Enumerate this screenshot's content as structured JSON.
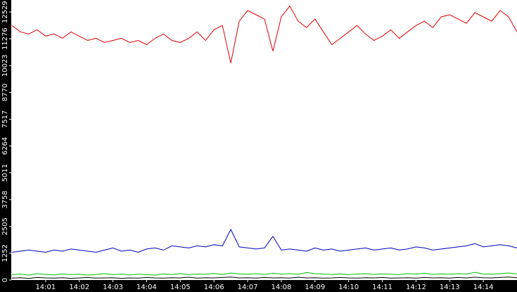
{
  "chart_data": {
    "type": "line",
    "x": [
      0,
      0.25,
      0.5,
      0.75,
      1,
      1.25,
      1.5,
      1.75,
      2,
      2.25,
      2.5,
      2.75,
      3,
      3.25,
      3.5,
      3.75,
      4,
      4.25,
      4.5,
      4.75,
      5,
      5.25,
      5.5,
      5.75,
      6,
      6.25,
      6.5,
      6.75,
      7,
      7.25,
      7.5,
      7.75,
      8,
      8.25,
      8.5,
      8.75,
      9,
      9.25,
      9.5,
      9.75,
      10,
      10.25,
      10.5,
      10.75,
      11,
      11.25,
      11.5,
      11.75,
      12,
      12.25,
      12.5,
      12.75,
      13,
      13.25,
      13.5,
      13.75,
      14,
      14.25,
      14.5,
      14.75,
      15
    ],
    "series": [
      {
        "color": "#e00000",
        "values": [
          11900,
          11600,
          11500,
          11700,
          11400,
          11500,
          11300,
          11600,
          11400,
          11200,
          11300,
          11100,
          11200,
          11300,
          11100,
          11200,
          11000,
          11300,
          11500,
          11200,
          11100,
          11300,
          11600,
          11200,
          11700,
          11900,
          10146,
          12100,
          12600,
          12400,
          12200,
          10697,
          12300,
          12800,
          12100,
          11800,
          12200,
          11600,
          11000,
          11300,
          11600,
          11900,
          11500,
          11200,
          11400,
          11700,
          11300,
          11600,
          11900,
          12100,
          11800,
          12300,
          12400,
          12200,
          12000,
          12500,
          12300,
          12100,
          12600,
          12300,
          11600
        ]
      },
      {
        "color": "#0000c0",
        "values": [
          1300,
          1350,
          1400,
          1350,
          1300,
          1400,
          1350,
          1450,
          1400,
          1350,
          1300,
          1400,
          1500,
          1350,
          1400,
          1300,
          1450,
          1500,
          1400,
          1600,
          1550,
          1500,
          1600,
          1550,
          1650,
          1600,
          2366,
          1550,
          1500,
          1450,
          1500,
          2042,
          1400,
          1450,
          1400,
          1350,
          1500,
          1400,
          1450,
          1350,
          1400,
          1450,
          1500,
          1400,
          1450,
          1500,
          1400,
          1450,
          1550,
          1500,
          1400,
          1450,
          1500,
          1550,
          1600,
          1700,
          1550,
          1600,
          1650,
          1600,
          1500
        ]
      },
      {
        "color": "#00c000",
        "values": [
          250,
          280,
          230,
          300,
          260,
          240,
          290,
          250,
          270,
          230,
          260,
          300,
          250,
          280,
          240,
          270,
          250,
          230,
          290,
          260,
          300,
          250,
          280,
          270,
          310,
          260,
          330,
          290,
          270,
          300,
          260,
          320,
          280,
          300,
          270,
          350,
          300,
          280,
          260,
          290,
          250,
          280,
          300,
          260,
          290,
          270,
          250,
          300,
          280,
          320,
          260,
          290,
          270,
          300,
          280,
          360,
          290,
          270,
          300,
          330,
          290
        ]
      },
      {
        "color": "#000000",
        "values": [
          90,
          110,
          80,
          120,
          100,
          90,
          110,
          80,
          100,
          120,
          90,
          100,
          110,
          80,
          100,
          90,
          120,
          100,
          90,
          110,
          100,
          130,
          90,
          110,
          100,
          120,
          140,
          100,
          110,
          90,
          120,
          100,
          110,
          90,
          130,
          100,
          110,
          90,
          100,
          120,
          100,
          90,
          110,
          100,
          120,
          90,
          100,
          110,
          90,
          120,
          100,
          110,
          90,
          120,
          100,
          130,
          110,
          100,
          120,
          140,
          110
        ]
      }
    ],
    "xlim": [
      0,
      15
    ],
    "xticks": [
      {
        "value": 1,
        "label": "14:01"
      },
      {
        "value": 2,
        "label": "14:02"
      },
      {
        "value": 3,
        "label": "14:03"
      },
      {
        "value": 4,
        "label": "14:04"
      },
      {
        "value": 5,
        "label": "14:05"
      },
      {
        "value": 6,
        "label": "14:06"
      },
      {
        "value": 7,
        "label": "14:07"
      },
      {
        "value": 8,
        "label": "14:08"
      },
      {
        "value": 9,
        "label": "14:09"
      },
      {
        "value": 10,
        "label": "14:10"
      },
      {
        "value": 11,
        "label": "14:11"
      },
      {
        "value": 12,
        "label": "14:12"
      },
      {
        "value": 13,
        "label": "14:13"
      },
      {
        "value": 14,
        "label": "14:14"
      }
    ],
    "ylim": [
      0,
      13090
    ],
    "yticks": [
      0,
      1252,
      2505,
      3758,
      5011,
      6264,
      7517,
      8770,
      10023,
      11276,
      12529
    ]
  }
}
